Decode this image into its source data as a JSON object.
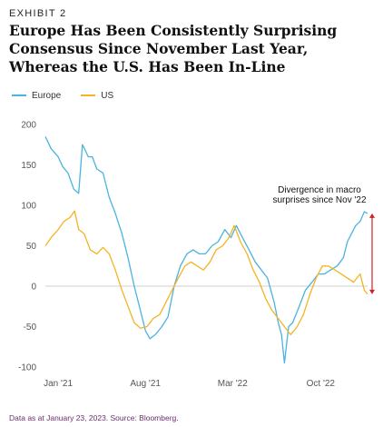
{
  "header": {
    "exhibit_label": "EXHIBIT 2",
    "title": "Europe Has Been Consistently Surprising Consensus Since November Last Year, Whereas the U.S. Has Been In-Line"
  },
  "footnote": "Data as at January 23, 2023. Source: Bloomberg.",
  "colors": {
    "europe": "#4bb3e0",
    "us": "#f5b324",
    "zero_line": "#cfcfcf",
    "divergence": "#d0202e"
  },
  "chart_data": {
    "type": "line",
    "title": "",
    "xlabel": "",
    "ylabel": "",
    "ylim": [
      -100,
      200
    ],
    "yticks": [
      200,
      150,
      100,
      50,
      0,
      -50,
      -100
    ],
    "xlim": [
      "2020-12-01",
      "2023-01-23"
    ],
    "xticks": [
      {
        "date": "2021-01-01",
        "label": "Jan '21"
      },
      {
        "date": "2021-08-01",
        "label": "Aug '21"
      },
      {
        "date": "2022-03-01",
        "label": "Mar '22"
      },
      {
        "date": "2022-10-01",
        "label": "Oct '22"
      }
    ],
    "grid": false,
    "legend_position": "top-left",
    "series": [
      {
        "name": "Europe",
        "color": "#4bb3e0",
        "points": [
          [
            "2020-12-01",
            185
          ],
          [
            "2020-12-15",
            170
          ],
          [
            "2021-01-01",
            160
          ],
          [
            "2021-01-12",
            148
          ],
          [
            "2021-01-25",
            140
          ],
          [
            "2021-02-08",
            120
          ],
          [
            "2021-02-20",
            115
          ],
          [
            "2021-03-01",
            175
          ],
          [
            "2021-03-08",
            168
          ],
          [
            "2021-03-15",
            160
          ],
          [
            "2021-03-25",
            160
          ],
          [
            "2021-04-05",
            145
          ],
          [
            "2021-04-20",
            140
          ],
          [
            "2021-05-05",
            110
          ],
          [
            "2021-05-20",
            90
          ],
          [
            "2021-06-05",
            65
          ],
          [
            "2021-06-20",
            35
          ],
          [
            "2021-07-05",
            0
          ],
          [
            "2021-07-20",
            -30
          ],
          [
            "2021-08-01",
            -55
          ],
          [
            "2021-08-12",
            -65
          ],
          [
            "2021-08-25",
            -60
          ],
          [
            "2021-09-10",
            -50
          ],
          [
            "2021-09-25",
            -38
          ],
          [
            "2021-10-10",
            0
          ],
          [
            "2021-10-25",
            25
          ],
          [
            "2021-11-10",
            40
          ],
          [
            "2021-11-25",
            45
          ],
          [
            "2021-12-10",
            40
          ],
          [
            "2021-12-25",
            40
          ],
          [
            "2022-01-10",
            50
          ],
          [
            "2022-01-25",
            55
          ],
          [
            "2022-02-10",
            70
          ],
          [
            "2022-02-25",
            60
          ],
          [
            "2022-03-10",
            75
          ],
          [
            "2022-03-25",
            60
          ],
          [
            "2022-04-10",
            45
          ],
          [
            "2022-04-25",
            30
          ],
          [
            "2022-05-10",
            20
          ],
          [
            "2022-05-25",
            10
          ],
          [
            "2022-06-10",
            -20
          ],
          [
            "2022-06-20",
            -45
          ],
          [
            "2022-06-28",
            -60
          ],
          [
            "2022-07-05",
            -95
          ],
          [
            "2022-07-15",
            -50
          ],
          [
            "2022-07-25",
            -45
          ],
          [
            "2022-08-10",
            -25
          ],
          [
            "2022-08-25",
            -5
          ],
          [
            "2022-09-10",
            5
          ],
          [
            "2022-09-25",
            15
          ],
          [
            "2022-10-10",
            15
          ],
          [
            "2022-10-25",
            20
          ],
          [
            "2022-11-10",
            25
          ],
          [
            "2022-11-25",
            35
          ],
          [
            "2022-12-05",
            55
          ],
          [
            "2022-12-15",
            65
          ],
          [
            "2022-12-25",
            75
          ],
          [
            "2023-01-05",
            80
          ],
          [
            "2023-01-15",
            92
          ],
          [
            "2023-01-23",
            90
          ]
        ]
      },
      {
        "name": "US",
        "color": "#f5b324",
        "points": [
          [
            "2020-12-01",
            50
          ],
          [
            "2020-12-15",
            60
          ],
          [
            "2021-01-01",
            70
          ],
          [
            "2021-01-15",
            80
          ],
          [
            "2021-01-30",
            85
          ],
          [
            "2021-02-10",
            93
          ],
          [
            "2021-02-20",
            70
          ],
          [
            "2021-03-05",
            65
          ],
          [
            "2021-03-20",
            45
          ],
          [
            "2021-04-05",
            40
          ],
          [
            "2021-04-20",
            48
          ],
          [
            "2021-05-05",
            40
          ],
          [
            "2021-05-20",
            20
          ],
          [
            "2021-06-05",
            -5
          ],
          [
            "2021-06-20",
            -25
          ],
          [
            "2021-07-05",
            -45
          ],
          [
            "2021-07-20",
            -52
          ],
          [
            "2021-08-05",
            -50
          ],
          [
            "2021-08-20",
            -40
          ],
          [
            "2021-09-05",
            -35
          ],
          [
            "2021-09-20",
            -20
          ],
          [
            "2021-10-05",
            -5
          ],
          [
            "2021-10-20",
            10
          ],
          [
            "2021-11-05",
            25
          ],
          [
            "2021-11-20",
            30
          ],
          [
            "2021-12-05",
            25
          ],
          [
            "2021-12-20",
            20
          ],
          [
            "2022-01-05",
            30
          ],
          [
            "2022-01-20",
            45
          ],
          [
            "2022-02-05",
            50
          ],
          [
            "2022-02-20",
            60
          ],
          [
            "2022-03-05",
            75
          ],
          [
            "2022-03-20",
            55
          ],
          [
            "2022-04-05",
            40
          ],
          [
            "2022-04-20",
            20
          ],
          [
            "2022-05-05",
            5
          ],
          [
            "2022-05-20",
            -15
          ],
          [
            "2022-06-05",
            -30
          ],
          [
            "2022-06-20",
            -40
          ],
          [
            "2022-07-05",
            -50
          ],
          [
            "2022-07-20",
            -60
          ],
          [
            "2022-08-05",
            -50
          ],
          [
            "2022-08-20",
            -35
          ],
          [
            "2022-09-05",
            -10
          ],
          [
            "2022-09-20",
            10
          ],
          [
            "2022-10-05",
            25
          ],
          [
            "2022-10-20",
            25
          ],
          [
            "2022-11-05",
            20
          ],
          [
            "2022-11-20",
            15
          ],
          [
            "2022-12-05",
            10
          ],
          [
            "2022-12-20",
            5
          ],
          [
            "2023-01-05",
            15
          ],
          [
            "2023-01-15",
            -5
          ],
          [
            "2023-01-23",
            -10
          ]
        ]
      }
    ],
    "annotation": {
      "text_lines": [
        "Divergence in macro",
        "surprises since Nov '22"
      ],
      "date": "2023-01-23",
      "from": 90,
      "to": -10
    }
  }
}
